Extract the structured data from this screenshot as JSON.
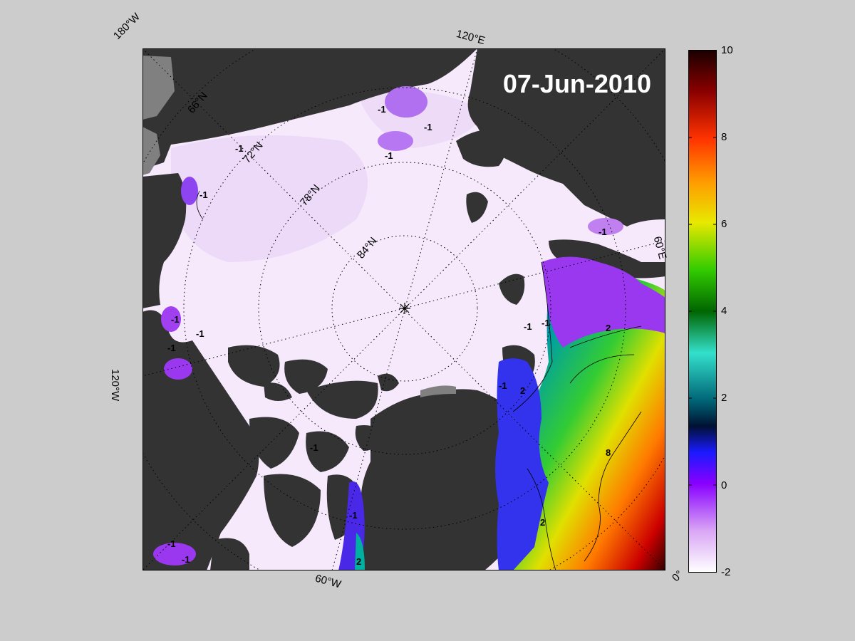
{
  "map": {
    "date": "07-Jun-2010",
    "center_marker": "pole-star-icon",
    "latitude_labels": [
      "66°N",
      "72°N",
      "78°N",
      "84°N"
    ],
    "longitude_labels": [
      "180°W",
      "120°E",
      "60°E",
      "0°",
      "60°W",
      "120°W"
    ],
    "contour_labels": [
      "-1",
      "-1",
      "-1",
      "-1",
      "-1",
      "-1",
      "-1",
      "-1",
      "-1",
      "-1",
      "-1",
      "-1",
      "-1",
      "2",
      "2",
      "2",
      "-1",
      "2",
      "-1",
      "8",
      "-1"
    ],
    "colors": {
      "background": "#cccccc",
      "land": "#333333",
      "shelf": "#808080",
      "ice": "#f7eefc"
    }
  },
  "colorbar": {
    "min": -2,
    "max": 10,
    "ticks": [
      "10",
      "8",
      "6",
      "4",
      "2",
      "0",
      "-2"
    ]
  }
}
